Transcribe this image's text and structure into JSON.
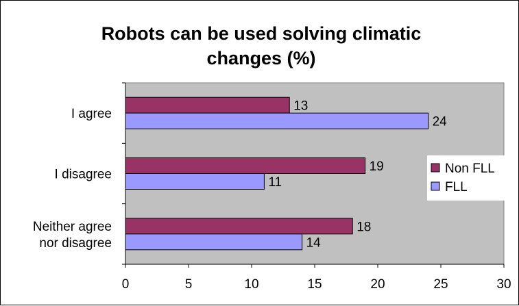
{
  "chart_data": {
    "type": "bar",
    "orientation": "horizontal",
    "title_lines": [
      "Robots can be used solving climatic",
      "changes (%)"
    ],
    "categories": [
      [
        "I agree"
      ],
      [
        "I disagree"
      ],
      [
        "Neither agree",
        "nor disagree"
      ]
    ],
    "series": [
      {
        "name": "Non FLL",
        "values": [
          13,
          19,
          18
        ],
        "color": "#993366"
      },
      {
        "name": "FLL",
        "values": [
          24,
          11,
          14
        ],
        "color": "#9999ff"
      }
    ],
    "xlim": [
      0,
      30
    ],
    "x_ticks": [
      0,
      5,
      10,
      15,
      20,
      25,
      30
    ],
    "grid": false,
    "legend_position": "right",
    "plot_background": "#c0c0c0"
  }
}
